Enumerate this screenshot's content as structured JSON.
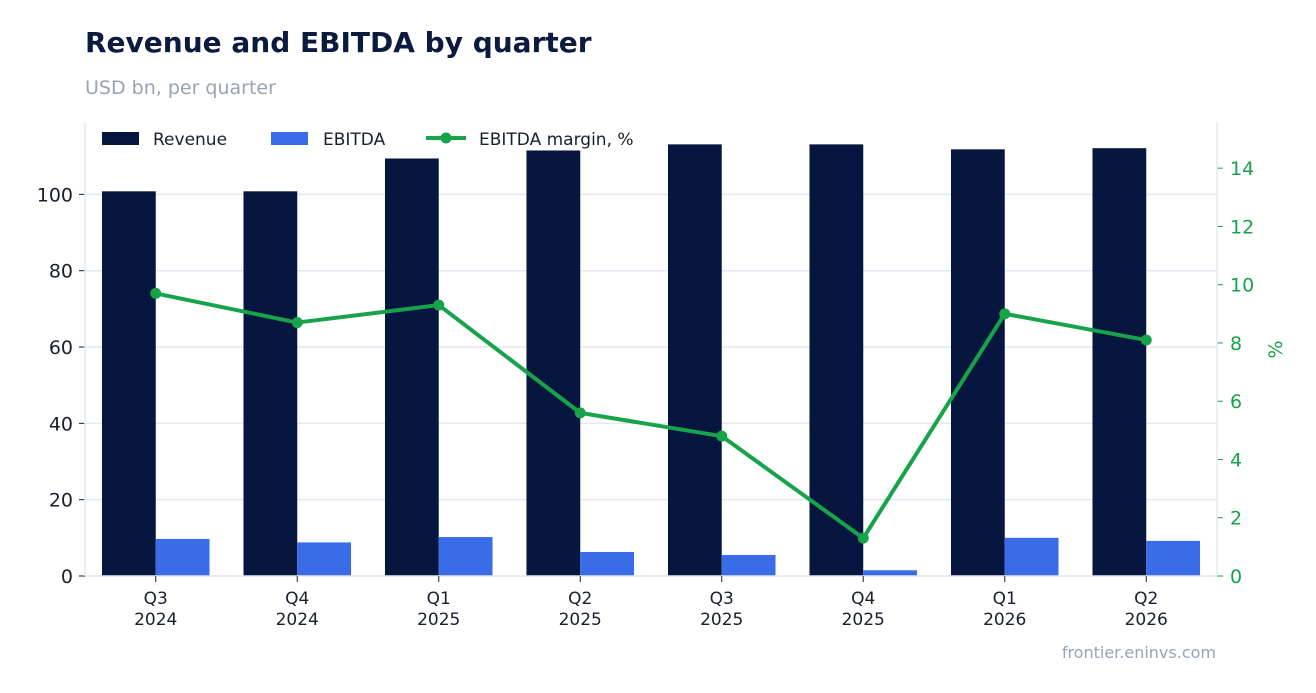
{
  "header": {
    "title": "Revenue and EBITDA by quarter",
    "subtitle": "USD bn, per quarter"
  },
  "footer": {
    "source": "frontier.eninvs.com"
  },
  "colors": {
    "revenue": "#06163f",
    "ebitda": "#3b6ce7",
    "margin": "#16a34a",
    "grid": "#e2e8f0",
    "text": "#1a1f2e"
  },
  "chart_data": {
    "type": "bar",
    "title": "Revenue and EBITDA by quarter",
    "subtitle": "USD bn, per quarter",
    "categories": [
      [
        "Q3",
        "2024"
      ],
      [
        "Q4",
        "2024"
      ],
      [
        "Q1",
        "2025"
      ],
      [
        "Q2",
        "2025"
      ],
      [
        "Q3",
        "2025"
      ],
      [
        "Q4",
        "2025"
      ],
      [
        "Q1",
        "2026"
      ],
      [
        "Q2",
        "2026"
      ]
    ],
    "series": [
      {
        "name": "Revenue",
        "type": "bar",
        "axis": "left",
        "values": [
          100.8,
          100.8,
          109.4,
          111.5,
          113.1,
          113.1,
          111.8,
          112.1
        ]
      },
      {
        "name": "EBITDA",
        "type": "bar",
        "axis": "left",
        "values": [
          9.7,
          8.8,
          10.2,
          6.3,
          5.5,
          1.5,
          10.0,
          9.2
        ]
      },
      {
        "name": "EBITDA margin, %",
        "type": "line",
        "axis": "right",
        "values": [
          9.7,
          8.7,
          9.3,
          5.6,
          4.8,
          1.3,
          9.0,
          8.1
        ]
      }
    ],
    "y_left": {
      "ylim": [
        0,
        118.7
      ],
      "ticks": [
        0,
        20,
        40,
        60,
        80,
        100
      ],
      "label": ""
    },
    "y_right": {
      "ylim": [
        0,
        15.55
      ],
      "ticks": [
        0,
        2,
        4,
        6,
        8,
        10,
        12,
        14
      ],
      "label": "%"
    },
    "grid": true,
    "legend_position": "top-left"
  }
}
